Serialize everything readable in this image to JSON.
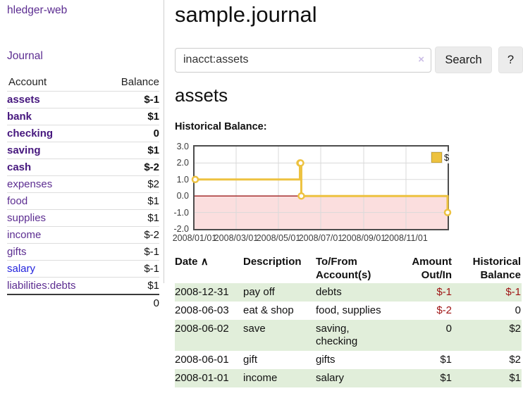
{
  "app": {
    "brand": "hledger-web"
  },
  "sidebar": {
    "nav_label": "Journal",
    "accounts_table": {
      "headers": [
        "Account",
        "Balance"
      ],
      "rows": [
        {
          "label": "assets",
          "depth": 1,
          "matched": true,
          "blue": false,
          "balance": "$-1",
          "tone": "neg-strong"
        },
        {
          "label": "bank",
          "depth": 2,
          "matched": true,
          "blue": false,
          "balance": "$1",
          "tone": "normal"
        },
        {
          "label": "checking",
          "depth": 3,
          "matched": true,
          "blue": false,
          "balance": "0",
          "tone": "normal"
        },
        {
          "label": "saving",
          "depth": 3,
          "matched": true,
          "blue": false,
          "balance": "$1",
          "tone": "normal"
        },
        {
          "label": "cash",
          "depth": 2,
          "matched": true,
          "blue": false,
          "balance": "$-2",
          "tone": "neg-strong"
        },
        {
          "label": "expenses",
          "depth": 1,
          "matched": false,
          "blue": false,
          "balance": "$2",
          "tone": "normal"
        },
        {
          "label": "food",
          "depth": 2,
          "matched": false,
          "blue": false,
          "balance": "$1",
          "tone": "normal"
        },
        {
          "label": "supplies",
          "depth": 2,
          "matched": false,
          "blue": false,
          "balance": "$1",
          "tone": "normal"
        },
        {
          "label": "income",
          "depth": 1,
          "matched": false,
          "blue": false,
          "balance": "$-2",
          "tone": "neg-soft"
        },
        {
          "label": "gifts",
          "depth": 2,
          "matched": false,
          "blue": false,
          "balance": "$-1",
          "tone": "neg-soft"
        },
        {
          "label": "salary",
          "depth": 2,
          "matched": false,
          "blue": true,
          "balance": "$-1",
          "tone": "neg-soft"
        },
        {
          "label": "liabilities:debts",
          "depth": 1,
          "matched": false,
          "blue": false,
          "balance": "$1",
          "tone": "normal"
        }
      ],
      "total": "0"
    }
  },
  "header": {
    "title": "sample.journal"
  },
  "search": {
    "value": "inacct:assets",
    "clear_icon": "×",
    "search_label": "Search",
    "help_label": "?"
  },
  "account_page": {
    "title": "assets",
    "chart_label": "Historical Balance:"
  },
  "chart_data": {
    "type": "line",
    "step": true,
    "title": "Historical Balance:",
    "series": [
      {
        "name": "$",
        "color": "#edc240",
        "points": [
          {
            "date": "2008-01-01",
            "value": 1
          },
          {
            "date": "2008-06-01",
            "value": 2
          },
          {
            "date": "2008-06-02",
            "value": 2
          },
          {
            "date": "2008-06-03",
            "value": 0
          },
          {
            "date": "2008-12-31",
            "value": -1
          }
        ]
      }
    ],
    "x_ticks": [
      "2008/01/01",
      "2008/03/01",
      "2008/05/01",
      "2008/07/01",
      "2008/09/01",
      "2008/11/01"
    ],
    "y_ticks": [
      "3.0",
      "2.0",
      "1.0",
      "0.0",
      "-1.0",
      "-2.0"
    ],
    "xlim": [
      "2008-01-01",
      "2008-12-31"
    ],
    "ylim": [
      -2,
      3
    ],
    "legend_position": "top-right",
    "negative_fill": "#fbdede",
    "zero_line_color": "#9c1e1e",
    "grid": true
  },
  "register_table": {
    "headers": [
      {
        "label": "Date",
        "sort_icon": "∧"
      },
      {
        "label": "Description"
      },
      {
        "label": "To/From Account(s)"
      },
      {
        "label": "Amount Out/In",
        "align": "right"
      },
      {
        "label": "Historical Balance",
        "align": "right"
      }
    ],
    "rows": [
      {
        "date": "2008-12-31",
        "description": "pay off",
        "accounts": "debts",
        "amount": "$-1",
        "amount_tone": "neg",
        "balance": "$-1",
        "balance_tone": "neg",
        "striped": true
      },
      {
        "date": "2008-06-03",
        "description": "eat & shop",
        "accounts": "food, supplies",
        "amount": "$-2",
        "amount_tone": "neg",
        "balance": "0",
        "balance_tone": "",
        "striped": false
      },
      {
        "date": "2008-06-02",
        "description": "save",
        "accounts": "saving, checking",
        "amount": "0",
        "amount_tone": "",
        "balance": "$2",
        "balance_tone": "",
        "striped": true
      },
      {
        "date": "2008-06-01",
        "description": "gift",
        "accounts": "gifts",
        "amount": "$1",
        "amount_tone": "",
        "balance": "$2",
        "balance_tone": "",
        "striped": false
      },
      {
        "date": "2008-01-01",
        "description": "income",
        "accounts": "salary",
        "amount": "$1",
        "amount_tone": "",
        "balance": "$1",
        "balance_tone": "",
        "striped": true
      }
    ]
  },
  "colors": {
    "brand_purple": "#5c2d91",
    "matched_purple": "#46177e",
    "link_blue": "#0b0bdf",
    "negative_strong": "#9e1212",
    "negative_soft": "#c87878",
    "row_stripe_green": "#e1eeda",
    "series_gold": "#edc240"
  }
}
